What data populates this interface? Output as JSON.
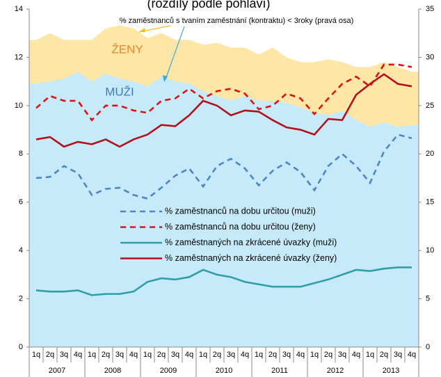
{
  "chart_data": {
    "type": "line",
    "title": "(rozdíly podle pohlaví)",
    "annotation": "% zaměstnanců s tvaním zaměstnání (kontraktu) < 3roky (pravá osa)",
    "categories": [
      "1q",
      "2q",
      "3q",
      "4q",
      "1q",
      "2q",
      "3q",
      "4q",
      "1q",
      "2q",
      "3q",
      "4q",
      "1q",
      "2q",
      "3q",
      "4q",
      "1q",
      "2q",
      "3q",
      "4q",
      "1q",
      "2q",
      "3q",
      "4q",
      "1q",
      "2q",
      "3q",
      "4q"
    ],
    "groups": [
      "2007",
      "2008",
      "2009",
      "2010",
      "2011",
      "2012",
      "2013"
    ],
    "ylim": [
      0,
      14
    ],
    "yticks": [
      0,
      2,
      4,
      6,
      8,
      10,
      12,
      14
    ],
    "y2lim": [
      0,
      35
    ],
    "y2ticks": [
      0,
      5,
      10,
      15,
      20,
      25,
      30,
      35
    ],
    "series": [
      {
        "name": "ŽENY",
        "type": "area",
        "axis": "y2",
        "color": "#fde6a6",
        "label_color": "#e8862a",
        "values": [
          31.8,
          32.5,
          31.8,
          31.8,
          31.8,
          33,
          33.3,
          33,
          32,
          32.5,
          31.8,
          31.8,
          31.3,
          31.5,
          31,
          31,
          30.3,
          31,
          30,
          29.5,
          29.5,
          29.8,
          29.5,
          29,
          29,
          29.5,
          29,
          28.5
        ]
      },
      {
        "name": "MUŽI",
        "type": "area",
        "axis": "y2",
        "color": "#c6eaf9",
        "label_color": "#3a7cc0",
        "values": [
          27.3,
          27.5,
          27.8,
          28.5,
          27.5,
          28.3,
          27.8,
          27.5,
          27,
          28,
          27.5,
          27.3,
          26.5,
          26,
          25.5,
          26,
          25.5,
          25.5,
          25.3,
          24.8,
          24.3,
          24,
          24.5,
          23.5,
          22.8,
          23.3,
          22.8,
          23
        ]
      },
      {
        "name": "% zaměstnanců na dobu určitou (muži)",
        "type": "line",
        "dashed": true,
        "color": "#4a86c8",
        "values": [
          7.0,
          7.05,
          7.5,
          7.2,
          6.3,
          6.55,
          6.6,
          6.3,
          6.15,
          6.6,
          7.1,
          7.4,
          6.65,
          7.5,
          7.8,
          7.4,
          6.7,
          7.3,
          7.65,
          7.25,
          6.5,
          7.5,
          8.0,
          7.5,
          6.8,
          8.1,
          8.8,
          8.65
        ]
      },
      {
        "name": "% zaměstnanců na dobu určitou (ženy)",
        "type": "line",
        "dashed": true,
        "color": "#e01010",
        "values": [
          9.9,
          10.4,
          10.2,
          10.2,
          9.4,
          10.0,
          10.0,
          9.8,
          9.7,
          10.2,
          10.3,
          10.7,
          10.3,
          10.6,
          10.7,
          10.5,
          9.85,
          10.0,
          10.5,
          10.3,
          9.65,
          10.3,
          10.9,
          11.2,
          10.8,
          11.7,
          11.7,
          11.6
        ]
      },
      {
        "name": "% zaměstnaných na zkrácené úvazky (muži)",
        "type": "line",
        "dashed": false,
        "color": "#2f9ea6",
        "values": [
          2.35,
          2.3,
          2.3,
          2.35,
          2.15,
          2.2,
          2.2,
          2.3,
          2.7,
          2.85,
          2.8,
          2.9,
          3.2,
          3.0,
          2.9,
          2.7,
          2.6,
          2.5,
          2.5,
          2.5,
          2.65,
          2.8,
          3.0,
          3.2,
          3.15,
          3.25,
          3.3,
          3.3
        ]
      },
      {
        "name": "% zaměstnaných na zkrácené úvazky (ženy)",
        "type": "line",
        "dashed": false,
        "color": "#b3101c",
        "values": [
          8.6,
          8.7,
          8.3,
          8.5,
          8.4,
          8.6,
          8.3,
          8.6,
          8.8,
          9.2,
          9.15,
          9.6,
          10.2,
          10.0,
          9.6,
          9.8,
          9.75,
          9.4,
          9.1,
          9.0,
          8.8,
          9.45,
          9.4,
          10.45,
          10.9,
          11.3,
          10.9,
          10.8
        ]
      }
    ]
  }
}
